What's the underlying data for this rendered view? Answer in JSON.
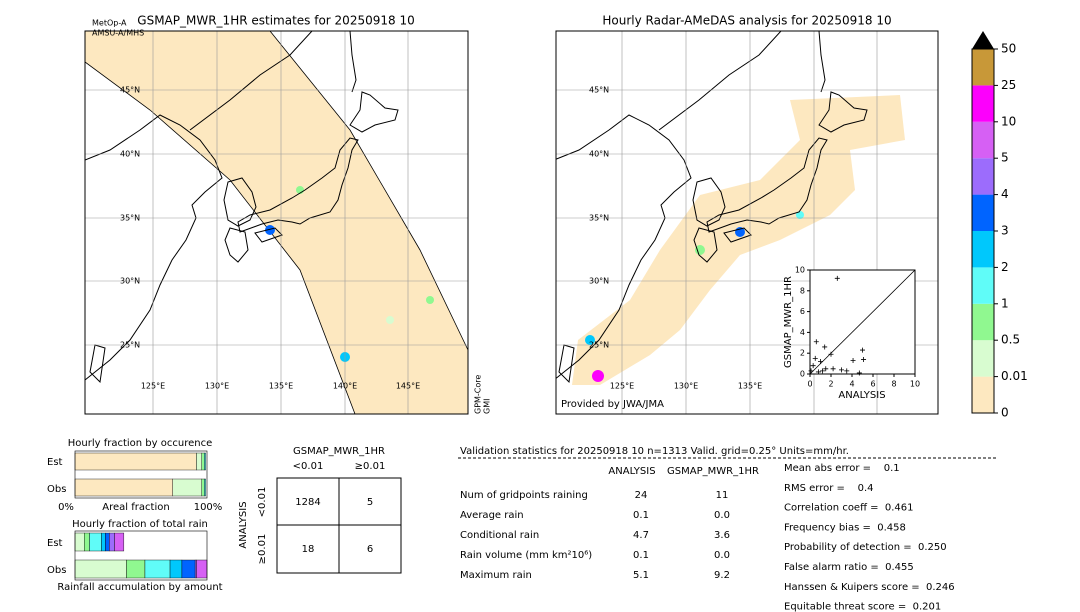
{
  "left_map": {
    "title": "GSMAP_MWR_1HR estimates for 20250918 10",
    "satellites_top": [
      "MetOp-A",
      "AMSU-A/MHS"
    ],
    "satellites_side": [
      "GPM-Core",
      "GMI"
    ],
    "lat_labels": [
      "45°N",
      "40°N",
      "35°N",
      "30°N",
      "25°N"
    ],
    "lon_labels": [
      "125°E",
      "130°E",
      "135°E",
      "140°E",
      "145°E"
    ]
  },
  "right_map": {
    "title": "Hourly Radar-AMeDAS analysis for 20250918 10",
    "lat_labels": [
      "45°N",
      "40°N",
      "35°N",
      "30°N",
      "25°N"
    ],
    "lon_labels": [
      "125°E",
      "130°E",
      "135°E"
    ],
    "credit": "Provided by JWA/JMA"
  },
  "scatter": {
    "type": "scatter",
    "xlabel": "ANALYSIS",
    "ylabel": "GSMAP_MWR_1HR",
    "xlim": [
      0,
      10
    ],
    "ylim": [
      0,
      10
    ],
    "xticks": [
      0,
      2,
      4,
      6,
      8,
      10
    ],
    "yticks": [
      0,
      2,
      4,
      6,
      8,
      10
    ],
    "x": [
      0.1,
      0.3,
      0.5,
      0.8,
      1.0,
      1.2,
      1.5,
      2.0,
      2.2,
      3.0,
      3.5,
      4.1,
      4.7,
      5.0,
      5.1,
      2.6,
      0.6,
      1.4
    ],
    "y": [
      0.3,
      0.8,
      1.5,
      0.2,
      1.2,
      0.3,
      0.5,
      1.9,
      0.5,
      0.4,
      0.3,
      1.3,
      0.1,
      2.3,
      1.4,
      9.2,
      3.1,
      2.6
    ]
  },
  "colorbar": {
    "ticks": [
      0,
      0.01,
      0.5,
      1,
      2,
      3,
      4,
      5,
      10,
      25,
      50
    ],
    "colors": [
      "#fde8c0",
      "#d8fcd0",
      "#90f890",
      "#60fcf8",
      "#00c8fc",
      "#0064ff",
      "#9c6cfc",
      "#d660f4",
      "#fc00fc",
      "#c89838"
    ]
  },
  "occurrence": {
    "title": "Hourly fraction by occurence",
    "rows": [
      "Est",
      "Obs"
    ],
    "xlabel": "Areal fraction",
    "xtick_labels": [
      "0%",
      "100%"
    ],
    "segments": [
      [
        0.92,
        0.04,
        0.02,
        0.01
      ],
      [
        0.74,
        0.22,
        0.02,
        0.01
      ]
    ]
  },
  "total_rain": {
    "title": "Hourly fraction of total rain",
    "rows": [
      "Est",
      "Obs"
    ],
    "xlabel": "Rainfall accumulation by amount",
    "segments": [
      [
        0.0,
        0.07,
        0.04,
        0.09,
        0.03,
        0.03,
        0.04,
        0.07
      ],
      [
        0.0,
        0.39,
        0.14,
        0.19,
        0.09,
        0.1,
        0.01,
        0.08
      ]
    ]
  },
  "contingency": {
    "title": "GSMAP_MWR_1HR",
    "col_labels": [
      "<0.01",
      "≥0.01"
    ],
    "row_title": "ANALYSIS",
    "row_labels": [
      "<0.01",
      "≥0.01"
    ],
    "cells": [
      [
        1284,
        5
      ],
      [
        18,
        6
      ]
    ]
  },
  "validation": {
    "header": "Validation statistics for 20250918 10  n=1313 Valid. grid=0.25° Units=mm/hr.",
    "columns": [
      "ANALYSIS",
      "GSMAP_MWR_1HR"
    ],
    "rows": [
      {
        "label": "Num of gridpoints raining",
        "values": [
          "24",
          "11"
        ]
      },
      {
        "label": "Average rain",
        "values": [
          "0.1",
          "0.0"
        ]
      },
      {
        "label": "Conditional rain",
        "values": [
          "4.7",
          "3.6"
        ]
      },
      {
        "label": "Rain volume (mm km²10⁶)",
        "values": [
          "0.1",
          "0.0"
        ]
      },
      {
        "label": "Maximum rain",
        "values": [
          "5.1",
          "9.2"
        ]
      }
    ],
    "scores": [
      "Mean abs error =    0.1",
      "RMS error =    0.4",
      "Correlation coeff =  0.461",
      "Frequency bias =  0.458",
      "Probability of detection =  0.250",
      "False alarm ratio =  0.455",
      "Hanssen & Kuipers score =  0.246",
      "Equitable threat score =  0.201"
    ]
  }
}
